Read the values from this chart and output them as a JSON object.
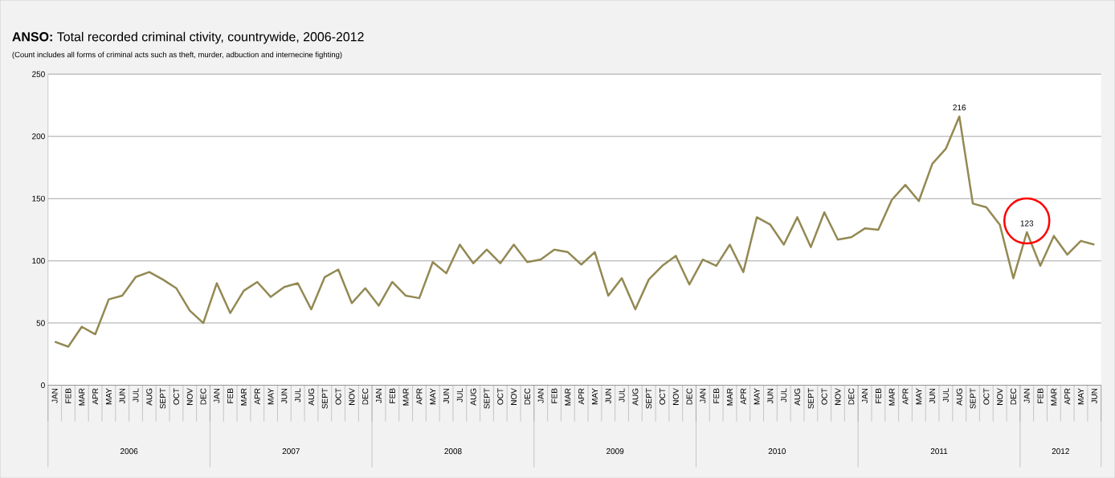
{
  "chart_data": {
    "type": "line",
    "title": "**ANSO:** Total recorded criminal ctivity, countrywide,  2006-2012",
    "subtitle": "(Count includes all forms of criminal acts such as theft, murder,  adbuction and internecine fighting)",
    "categories": [
      "JAN",
      "FEB",
      "MAR",
      "APR",
      "MAY",
      "JUN",
      "JUL",
      "AUG",
      "SEPT",
      "OCT",
      "NOV",
      "DEC",
      "JAN",
      "FEB",
      "MAR",
      "APR",
      "MAY",
      "JUN",
      "JUL",
      "AUG",
      "SEPT",
      "OCT",
      "NOV",
      "DEC",
      "JAN",
      "FEB",
      "MAR",
      "APR",
      "MAY",
      "JUN",
      "JUL",
      "AUG",
      "SEPT",
      "OCT",
      "NOV",
      "DEC",
      "JAN",
      "FEB",
      "MAR",
      "APR",
      "MAY",
      "JUN",
      "JUL",
      "AUG",
      "SEPT",
      "OCT",
      "NOV",
      "DEC",
      "JAN",
      "FEB",
      "MAR",
      "APR",
      "MAY",
      "JUN",
      "JUL",
      "AUG",
      "SEPT",
      "OCT",
      "NOV",
      "DEC",
      "JAN",
      "FEB",
      "MAR",
      "APR",
      "MAY",
      "JUN",
      "JUL",
      "AUG",
      "SEPT",
      "OCT",
      "NOV",
      "DEC",
      "JAN",
      "FEB",
      "MAR",
      "APR",
      "MAY",
      "JUN"
    ],
    "annotations": [
      "2006",
      "2007",
      "2008",
      "2009",
      "2010",
      "2011",
      "2012"
    ],
    "values": [
      35,
      31,
      47,
      41,
      69,
      72,
      87,
      91,
      85,
      78,
      60,
      50,
      82,
      58,
      76,
      83,
      71,
      79,
      82,
      61,
      87,
      93,
      66,
      78,
      64,
      83,
      72,
      70,
      99,
      90,
      113,
      98,
      109,
      98,
      113,
      99,
      101,
      109,
      107,
      97,
      107,
      72,
      86,
      61,
      85,
      96,
      104,
      81,
      101,
      96,
      113,
      91,
      135,
      129,
      113,
      135,
      111,
      139,
      117,
      119,
      126,
      125,
      149,
      161,
      148,
      178,
      190,
      216,
      146,
      143,
      129,
      86,
      123,
      96,
      120,
      105,
      116,
      113
    ],
    "value_labels": [
      null,
      null,
      null,
      null,
      null,
      null,
      null,
      null,
      null,
      null,
      null,
      null,
      null,
      null,
      null,
      null,
      null,
      null,
      null,
      null,
      null,
      null,
      null,
      null,
      null,
      null,
      null,
      null,
      null,
      null,
      null,
      null,
      null,
      null,
      null,
      null,
      null,
      null,
      null,
      null,
      null,
      null,
      null,
      null,
      null,
      null,
      null,
      null,
      null,
      null,
      null,
      null,
      null,
      null,
      null,
      null,
      null,
      null,
      null,
      null,
      null,
      null,
      null,
      null,
      null,
      null,
      null,
      "216",
      null,
      null,
      null,
      null,
      "123",
      null,
      null,
      null,
      null,
      null
    ],
    "color": "#938953",
    "ylim": [
      0,
      250
    ],
    "yticks": [
      0,
      50,
      100,
      150,
      200,
      250
    ],
    "grid": "y",
    "marker": "none",
    "line_style": "solid"
  }
}
